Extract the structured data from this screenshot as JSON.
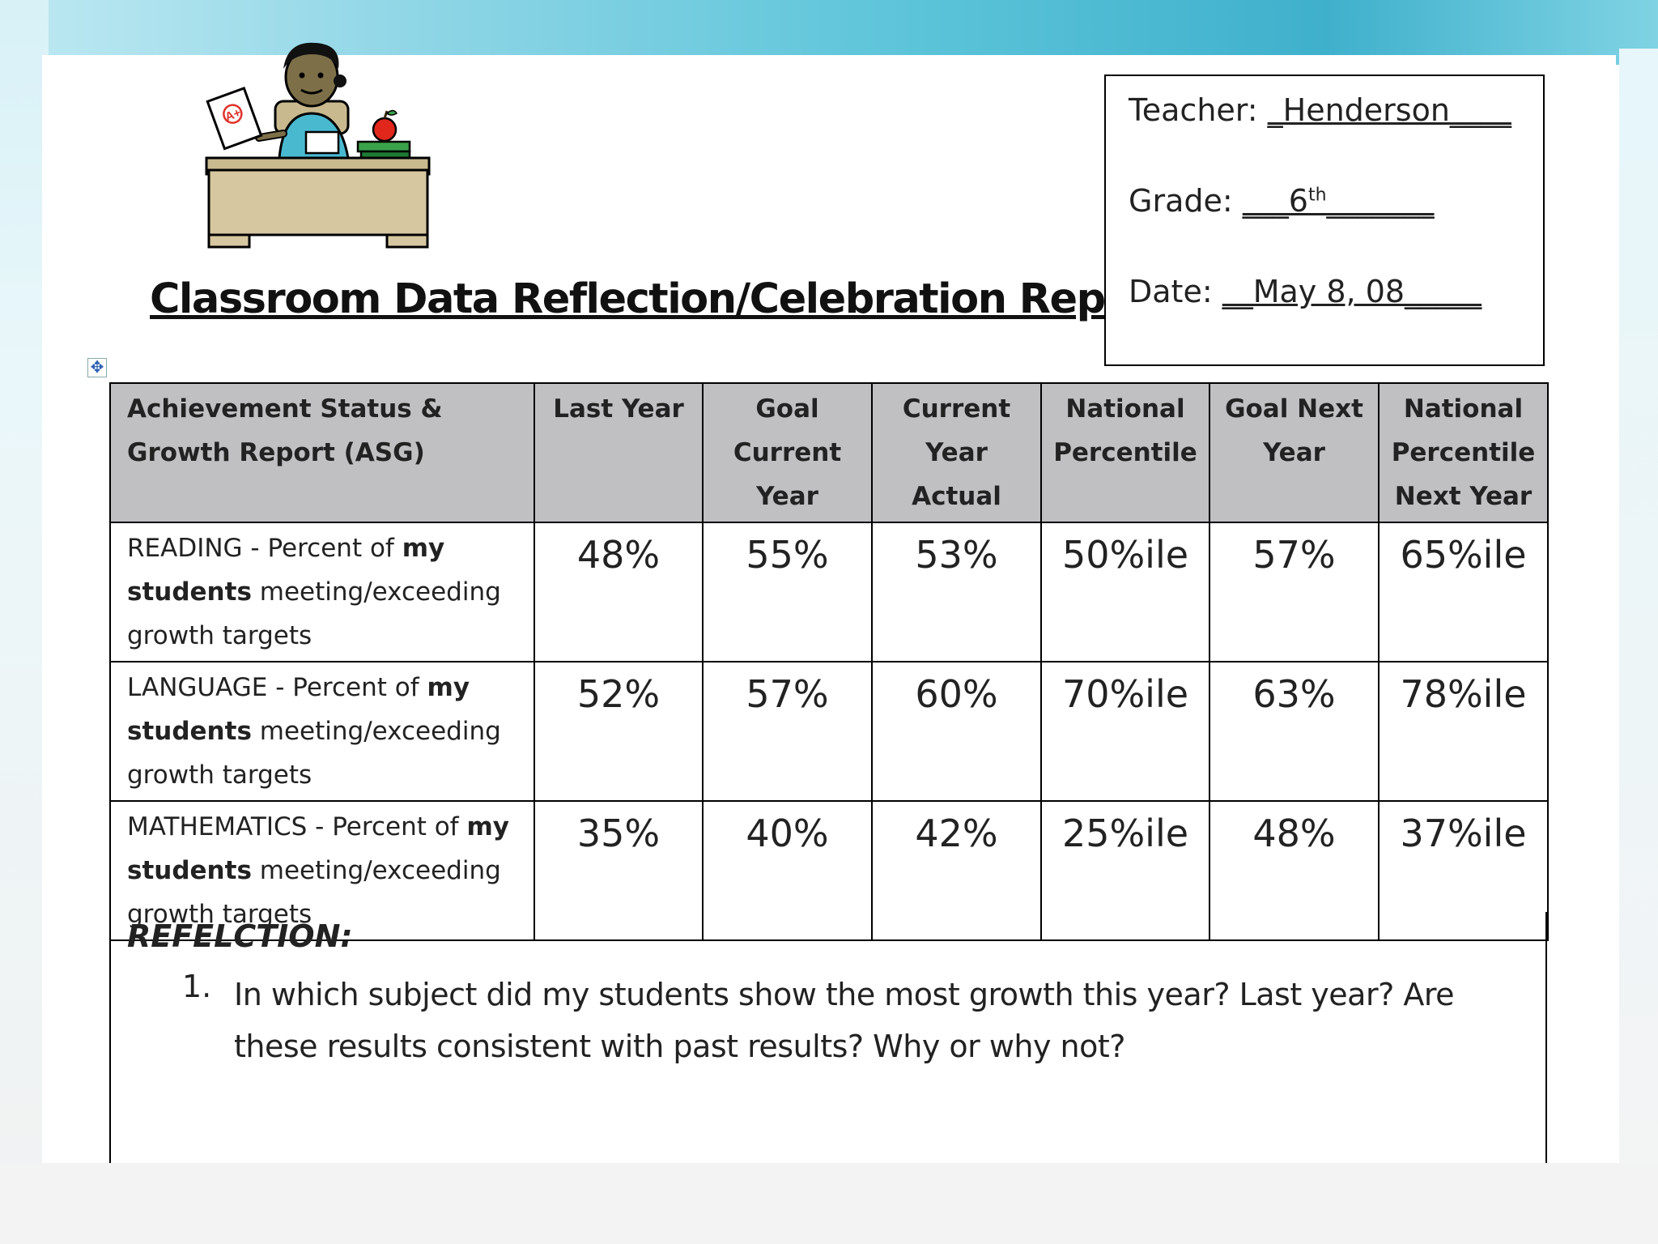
{
  "title": "Classroom Data Reflection/Celebration Report",
  "info": {
    "teacher_label": "Teacher:",
    "teacher_value": "_Henderson____",
    "grade_label": "Grade:",
    "grade_prefix": "___6",
    "grade_sup": "th",
    "grade_suffix": "_______",
    "date_label": "Date:",
    "date_value": "__May 8, 08_____"
  },
  "table": {
    "headers": [
      "Achievement Status & Growth Report (ASG)",
      "Last Year",
      "Goal Current Year",
      "Current Year Actual",
      "National Percentile",
      "Goal Next Year",
      "National Percentile Next Year"
    ],
    "rows": [
      {
        "subject": "READING",
        "desc_pre": " - Percent of ",
        "desc_bold1": "my",
        "desc_bold2": "students",
        "desc_post": " meeting/exceeding growth targets",
        "values": [
          "48%",
          "55%",
          "53%",
          "50%ile",
          "57%",
          "65%ile"
        ]
      },
      {
        "subject": "LANGUAGE",
        "desc_pre": " - Percent of ",
        "desc_bold1": "my",
        "desc_bold2": "students",
        "desc_post": " meeting/exceeding growth targets",
        "values": [
          "52%",
          "57%",
          "60%",
          "70%ile",
          "63%",
          "78%ile"
        ]
      },
      {
        "subject": "MATHEMATICS",
        "desc_pre": " - Percent of ",
        "desc_bold1": "my",
        "desc_bold2": "students",
        "desc_post": " meeting/exceeding growth targets",
        "values": [
          "35%",
          "40%",
          "42%",
          "25%ile",
          "48%",
          "37%ile"
        ]
      }
    ]
  },
  "reflection": {
    "heading": "REFELCTION:",
    "question_number": "1.",
    "question_text": "In which subject did my students show the most growth this year?  Last year?  Are these results consistent with past results?  Why or why not?"
  },
  "clipart": {
    "paper_grade": "A+"
  }
}
